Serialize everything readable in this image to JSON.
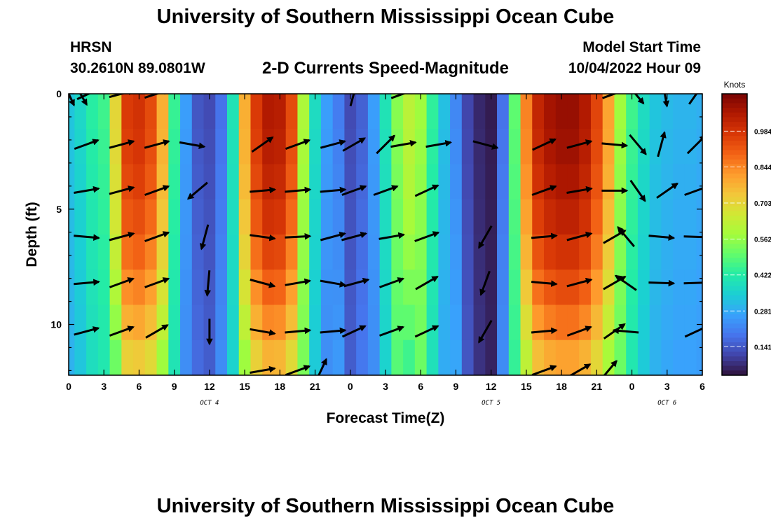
{
  "header": {
    "main_title": "University of Southern Mississippi Ocean Cube",
    "station_name": "HRSN",
    "coordinates": "30.2610N  89.0801W",
    "chart_title": "2-D Currents Speed-Magnitude",
    "model_start_label": "Model Start Time",
    "model_start_value": "10/04/2022 Hour 09"
  },
  "footer": {
    "title": "University of Southern Mississippi Ocean Cube"
  },
  "colors": {
    "colormap": [
      "#30123b",
      "#4145ab",
      "#4675ed",
      "#39a2fc",
      "#1bcfd4",
      "#24eca6",
      "#61fc6c",
      "#a4fc3b",
      "#d1e834",
      "#f3c63a",
      "#fe9b2d",
      "#f36315",
      "#d93806",
      "#b11901",
      "#7a0403"
    ],
    "arrow": "#000000"
  },
  "chart_data": {
    "type": "heatmap",
    "title": "2-D Currents Speed-Magnitude",
    "xlabel": "Forecast Time(Z)",
    "ylabel": "Depth (ft)",
    "x_tick_labels": [
      "0",
      "3",
      "6",
      "9",
      "12",
      "15",
      "18",
      "21",
      "0",
      "3",
      "6",
      "9",
      "12",
      "15",
      "18",
      "21",
      "0",
      "3",
      "6"
    ],
    "x_hours_from_start": [
      0,
      3,
      6,
      9,
      12,
      15,
      18,
      21,
      24,
      27,
      30,
      33,
      36,
      39,
      42,
      45,
      48,
      51,
      54
    ],
    "day_labels": [
      {
        "text": "OCT 4",
        "hour": 12
      },
      {
        "text": "OCT 5",
        "hour": 36
      },
      {
        "text": "OCT 6",
        "hour": 51
      }
    ],
    "y_tick_labels": [
      "0",
      "5",
      "10"
    ],
    "y_tick_values": [
      0,
      5,
      10
    ],
    "ylim": [
      0,
      12.2
    ],
    "y_reversed": true,
    "colorbar": {
      "unit": "Knots",
      "tick_labels": [
        "0.984",
        "0.844",
        "0.703",
        "0.562",
        "0.422",
        "0.281",
        "0.141"
      ],
      "tick_values": [
        0.984,
        0.844,
        0.703,
        0.562,
        0.422,
        0.281,
        0.141
      ],
      "range": [
        0.03,
        1.13
      ]
    },
    "speed_profile_by_hour": [
      [
        0,
        0.33
      ],
      [
        1,
        0.37
      ],
      [
        2,
        0.43
      ],
      [
        3,
        0.46
      ],
      [
        4,
        0.7
      ],
      [
        5,
        0.97
      ],
      [
        6,
        0.99
      ],
      [
        7,
        0.94
      ],
      [
        8,
        0.78
      ],
      [
        9,
        0.45
      ],
      [
        10,
        0.26
      ],
      [
        11,
        0.15
      ],
      [
        12,
        0.13
      ],
      [
        13,
        0.2
      ],
      [
        14,
        0.4
      ],
      [
        15,
        0.78
      ],
      [
        16,
        0.97
      ],
      [
        17,
        1.05
      ],
      [
        18,
        1.04
      ],
      [
        19,
        0.94
      ],
      [
        20,
        0.6
      ],
      [
        21,
        0.38
      ],
      [
        22,
        0.26
      ],
      [
        23,
        0.22
      ],
      [
        24,
        0.13
      ],
      [
        25,
        0.17
      ],
      [
        26,
        0.26
      ],
      [
        27,
        0.4
      ],
      [
        28,
        0.55
      ],
      [
        29,
        0.62
      ],
      [
        30,
        0.58
      ],
      [
        31,
        0.44
      ],
      [
        32,
        0.32
      ],
      [
        33,
        0.24
      ],
      [
        34,
        0.12
      ],
      [
        35,
        0.07
      ],
      [
        36,
        0.05
      ],
      [
        37,
        0.2
      ],
      [
        38,
        0.5
      ],
      [
        39,
        0.85
      ],
      [
        40,
        1.02
      ],
      [
        41,
        1.07
      ],
      [
        42,
        1.09
      ],
      [
        43,
        1.09
      ],
      [
        44,
        1.05
      ],
      [
        45,
        0.95
      ],
      [
        46,
        0.8
      ],
      [
        47,
        0.58
      ],
      [
        48,
        0.46
      ],
      [
        49,
        0.38
      ],
      [
        50,
        0.33
      ],
      [
        51,
        0.31
      ],
      [
        52,
        0.3
      ],
      [
        53,
        0.3
      ],
      [
        54,
        0.29
      ]
    ],
    "arrow_depths_ft": [
      0,
      2.2,
      4.2,
      6.2,
      8.2,
      10.3,
      12
    ],
    "arrows": [
      {
        "hour": 0,
        "row": 0,
        "angle": 65
      },
      {
        "hour": 1,
        "row": 0,
        "angle": 60
      },
      {
        "hour": 1.7,
        "row": 0,
        "angle": -25
      },
      {
        "hour": 4.5,
        "row": 0,
        "angle": -15
      },
      {
        "hour": 7.5,
        "row": 0,
        "angle": -18
      },
      {
        "hour": 24.3,
        "row": 0,
        "angle": -75
      },
      {
        "hour": 28.5,
        "row": 0,
        "angle": -20
      },
      {
        "hour": 46.5,
        "row": 0,
        "angle": -20
      },
      {
        "hour": 48.3,
        "row": 0,
        "angle": 50
      },
      {
        "hour": 50.8,
        "row": 0,
        "angle": 80
      },
      {
        "hour": 53.5,
        "row": 0,
        "angle": -55
      },
      {
        "hour": 1.5,
        "row": 1,
        "angle": -20
      },
      {
        "hour": 4.5,
        "row": 1,
        "angle": -15
      },
      {
        "hour": 7.5,
        "row": 1,
        "angle": -15
      },
      {
        "hour": 10.5,
        "row": 1,
        "angle": 10
      },
      {
        "hour": 16.5,
        "row": 1,
        "angle": -35
      },
      {
        "hour": 19.5,
        "row": 1,
        "angle": -20
      },
      {
        "hour": 22.5,
        "row": 1,
        "angle": -15
      },
      {
        "hour": 24.3,
        "row": 1,
        "angle": -30
      },
      {
        "hour": 27,
        "row": 1,
        "angle": -45
      },
      {
        "hour": 28.5,
        "row": 1,
        "angle": -10
      },
      {
        "hour": 31.5,
        "row": 1,
        "angle": -10
      },
      {
        "hour": 35.5,
        "row": 1,
        "angle": 15
      },
      {
        "hour": 40.5,
        "row": 1,
        "angle": -25
      },
      {
        "hour": 43.5,
        "row": 1,
        "angle": -15
      },
      {
        "hour": 46.5,
        "row": 1,
        "angle": 5
      },
      {
        "hour": 48.5,
        "row": 1,
        "angle": 50
      },
      {
        "hour": 50.5,
        "row": 1,
        "angle": -75
      },
      {
        "hour": 53.5,
        "row": 1,
        "angle": -45
      },
      {
        "hour": 1.5,
        "row": 2,
        "angle": -10
      },
      {
        "hour": 4.5,
        "row": 2,
        "angle": -15
      },
      {
        "hour": 7.5,
        "row": 2,
        "angle": -20
      },
      {
        "hour": 11,
        "row": 2,
        "angle": 140
      },
      {
        "hour": 16.5,
        "row": 2,
        "angle": -5
      },
      {
        "hour": 19.5,
        "row": 2,
        "angle": -5
      },
      {
        "hour": 22.5,
        "row": 2,
        "angle": -5
      },
      {
        "hour": 24.3,
        "row": 2,
        "angle": -20
      },
      {
        "hour": 27,
        "row": 2,
        "angle": -20
      },
      {
        "hour": 30.5,
        "row": 2,
        "angle": -25
      },
      {
        "hour": 40.5,
        "row": 2,
        "angle": -20
      },
      {
        "hour": 43.5,
        "row": 2,
        "angle": -10
      },
      {
        "hour": 46.5,
        "row": 2,
        "angle": 0
      },
      {
        "hour": 48.5,
        "row": 2,
        "angle": 55
      },
      {
        "hour": 51,
        "row": 2,
        "angle": -35
      },
      {
        "hour": 53.5,
        "row": 2,
        "angle": -20
      },
      {
        "hour": 1.5,
        "row": 3,
        "angle": 5
      },
      {
        "hour": 4.5,
        "row": 3,
        "angle": -15
      },
      {
        "hour": 7.5,
        "row": 3,
        "angle": -20
      },
      {
        "hour": 11.6,
        "row": 3,
        "angle": 105
      },
      {
        "hour": 16.5,
        "row": 3,
        "angle": 8
      },
      {
        "hour": 19.5,
        "row": 3,
        "angle": -3
      },
      {
        "hour": 22.5,
        "row": 3,
        "angle": -15
      },
      {
        "hour": 24.3,
        "row": 3,
        "angle": -15
      },
      {
        "hour": 27.5,
        "row": 3,
        "angle": -10
      },
      {
        "hour": 30.5,
        "row": 3,
        "angle": -20
      },
      {
        "hour": 35.5,
        "row": 3,
        "angle": 120
      },
      {
        "hour": 40.5,
        "row": 3,
        "angle": -5
      },
      {
        "hour": 43.5,
        "row": 3,
        "angle": -15
      },
      {
        "hour": 46.5,
        "row": 3,
        "angle": -30
      },
      {
        "hour": 47.5,
        "row": 3,
        "angle": 230
      },
      {
        "hour": 50.5,
        "row": 3,
        "angle": 5
      },
      {
        "hour": 53.5,
        "row": 3,
        "angle": 2
      },
      {
        "hour": 1.5,
        "row": 4,
        "angle": -5
      },
      {
        "hour": 4.5,
        "row": 4,
        "angle": -20
      },
      {
        "hour": 7.5,
        "row": 4,
        "angle": -20
      },
      {
        "hour": 11.9,
        "row": 4,
        "angle": 95
      },
      {
        "hour": 16.5,
        "row": 4,
        "angle": 15
      },
      {
        "hour": 19.5,
        "row": 4,
        "angle": -10
      },
      {
        "hour": 22.5,
        "row": 4,
        "angle": 10
      },
      {
        "hour": 24.5,
        "row": 4,
        "angle": -15
      },
      {
        "hour": 27.5,
        "row": 4,
        "angle": -20
      },
      {
        "hour": 30.5,
        "row": 4,
        "angle": -30
      },
      {
        "hour": 35.5,
        "row": 4,
        "angle": 110
      },
      {
        "hour": 40.5,
        "row": 4,
        "angle": 5
      },
      {
        "hour": 43.5,
        "row": 4,
        "angle": -15
      },
      {
        "hour": 46.5,
        "row": 4,
        "angle": -30
      },
      {
        "hour": 47.5,
        "row": 4,
        "angle": 215
      },
      {
        "hour": 50.5,
        "row": 4,
        "angle": 2
      },
      {
        "hour": 53.5,
        "row": 4,
        "angle": -2
      },
      {
        "hour": 1.5,
        "row": 5,
        "angle": -15
      },
      {
        "hour": 4.5,
        "row": 5,
        "angle": -20
      },
      {
        "hour": 7.5,
        "row": 5,
        "angle": -30
      },
      {
        "hour": 12,
        "row": 5,
        "angle": 90
      },
      {
        "hour": 16.5,
        "row": 5,
        "angle": 10
      },
      {
        "hour": 19.5,
        "row": 5,
        "angle": -5
      },
      {
        "hour": 22.5,
        "row": 5,
        "angle": -5
      },
      {
        "hour": 24.3,
        "row": 5,
        "angle": -25
      },
      {
        "hour": 27.5,
        "row": 5,
        "angle": -20
      },
      {
        "hour": 30.5,
        "row": 5,
        "angle": -25
      },
      {
        "hour": 35.5,
        "row": 5,
        "angle": 120
      },
      {
        "hour": 40.5,
        "row": 5,
        "angle": -5
      },
      {
        "hour": 43.5,
        "row": 5,
        "angle": -20
      },
      {
        "hour": 46.5,
        "row": 5,
        "angle": -35
      },
      {
        "hour": 47.5,
        "row": 5,
        "angle": 185
      },
      {
        "hour": 53.5,
        "row": 5,
        "angle": -25
      },
      {
        "hour": 16.5,
        "row": 6,
        "angle": -10
      },
      {
        "hour": 19.5,
        "row": 6,
        "angle": -20
      },
      {
        "hour": 21.5,
        "row": 6,
        "angle": -65
      },
      {
        "hour": 40.5,
        "row": 6,
        "angle": -20
      },
      {
        "hour": 43.5,
        "row": 6,
        "angle": -30
      },
      {
        "hour": 46,
        "row": 6,
        "angle": -50
      }
    ]
  }
}
